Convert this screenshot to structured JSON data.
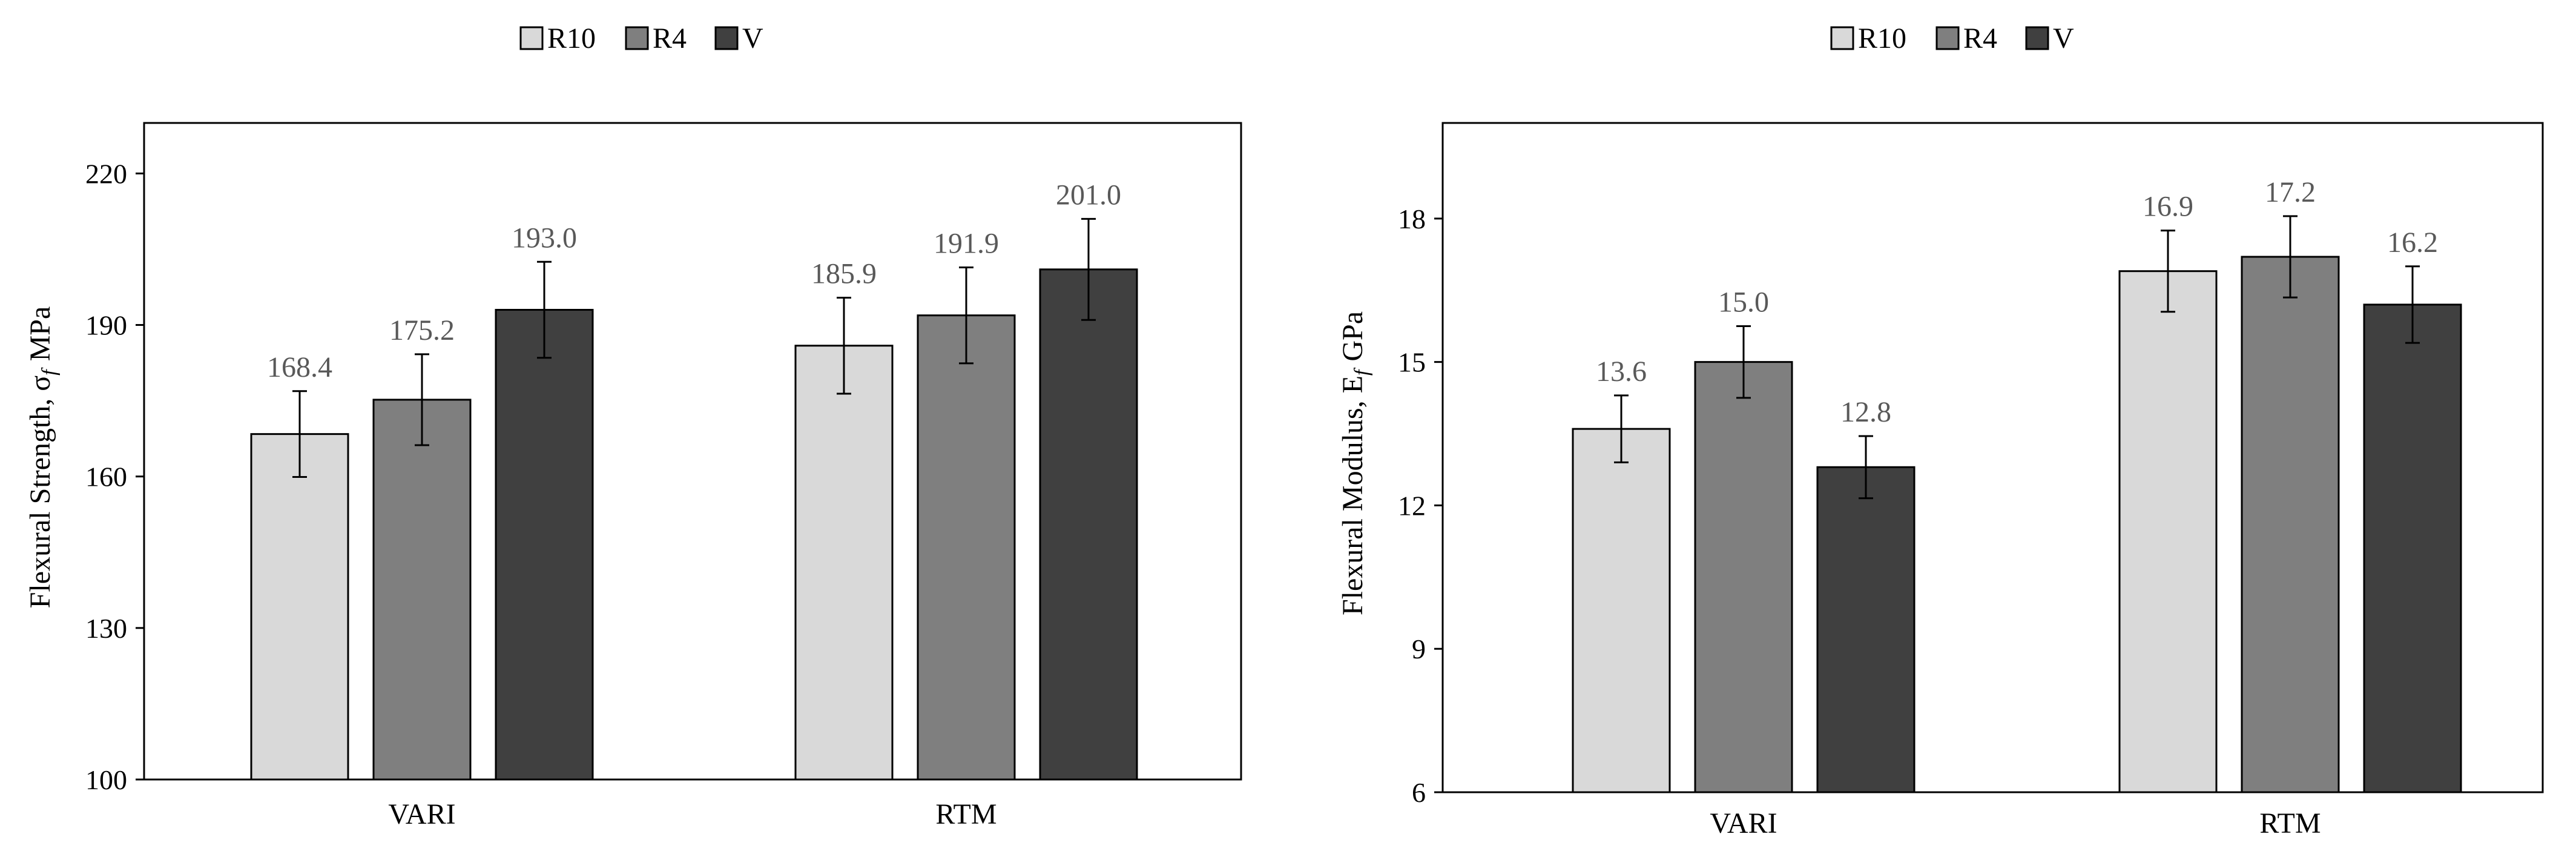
{
  "colors": {
    "R10": "#d9d9d9",
    "R4": "#7f7f7f",
    "V": "#404040",
    "axis": "#000000",
    "label_text": "#595959"
  },
  "chart_data": [
    {
      "type": "bar",
      "title": "",
      "ylabel": "Flexural Strength, σ",
      "ylabel_sub": "f",
      "ylabel_unit": "MPa",
      "xlabel": "",
      "categories": [
        "VARI",
        "RTM"
      ],
      "legend": {
        "placement": "top-center",
        "entries": [
          "R10",
          "R4",
          "V"
        ]
      },
      "series": [
        {
          "name": "R10",
          "values": [
            168.4,
            185.9
          ],
          "errors": [
            8.5,
            9.5
          ],
          "labels": [
            "168.4",
            "185.9"
          ]
        },
        {
          "name": "R4",
          "values": [
            175.2,
            191.9
          ],
          "errors": [
            9.0,
            9.5
          ],
          "labels": [
            "175.2",
            "191.9"
          ]
        },
        {
          "name": "V",
          "values": [
            193.0,
            201.0
          ],
          "errors": [
            9.5,
            10.0
          ],
          "labels": [
            "193.0",
            "201.0"
          ]
        }
      ],
      "ylim": [
        100,
        230
      ],
      "yticks": [
        100,
        130,
        160,
        190,
        220
      ],
      "ytick_labels": [
        "100",
        "130",
        "160",
        "190",
        "220"
      ],
      "grid": false
    },
    {
      "type": "bar",
      "title": "",
      "ylabel": "Flexural Modulus, E",
      "ylabel_sub": "f",
      "ylabel_unit": "GPa",
      "xlabel": "",
      "categories": [
        "VARI",
        "RTM"
      ],
      "legend": {
        "placement": "top-center",
        "entries": [
          "R10",
          "R4",
          "V"
        ]
      },
      "series": [
        {
          "name": "R10",
          "values": [
            13.6,
            16.9
          ],
          "errors": [
            0.7,
            0.85
          ],
          "labels": [
            "13.6",
            "16.9"
          ]
        },
        {
          "name": "R4",
          "values": [
            15.0,
            17.2
          ],
          "errors": [
            0.75,
            0.85
          ],
          "labels": [
            "15.0",
            "17.2"
          ]
        },
        {
          "name": "V",
          "values": [
            12.8,
            16.2
          ],
          "errors": [
            0.65,
            0.8
          ],
          "labels": [
            "12.8",
            "16.2"
          ]
        }
      ],
      "ylim": [
        6,
        20
      ],
      "yticks": [
        6,
        9,
        12,
        15,
        18
      ],
      "ytick_labels": [
        "6",
        "9",
        "12",
        "15",
        "18"
      ],
      "grid": false
    }
  ]
}
